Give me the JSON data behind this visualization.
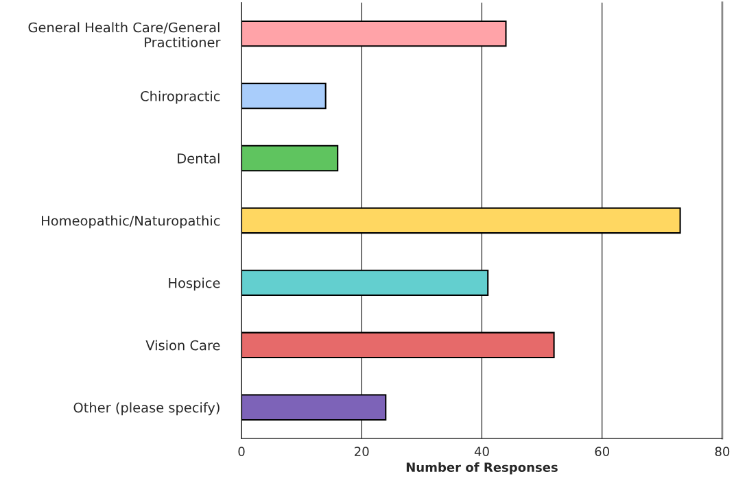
{
  "chart_data": {
    "type": "bar",
    "orientation": "horizontal",
    "xlabel": "Number of Responses",
    "categories": [
      "General Health Care/General\nPractitioner",
      "Chiropractic",
      "Dental",
      "Homeopathic/Naturopathic",
      "Hospice",
      "Vision Care",
      "Other (please specify)"
    ],
    "values": [
      44,
      14,
      16,
      73,
      41,
      52,
      24
    ],
    "colors": [
      "#ffa3a8",
      "#a9cdfb",
      "#5fc45f",
      "#ffd761",
      "#63cfcf",
      "#e66a6a",
      "#7d63b8"
    ],
    "xlim": [
      0,
      80
    ],
    "xticks": [
      0,
      20,
      40,
      60,
      80
    ],
    "grid": "x"
  }
}
